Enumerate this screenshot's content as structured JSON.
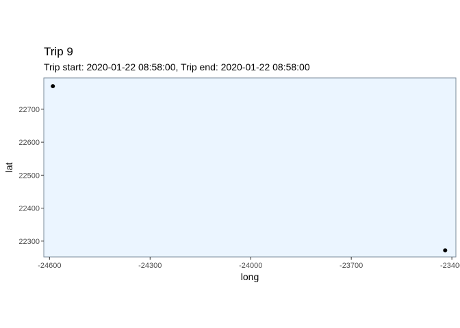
{
  "chart_data": {
    "type": "scatter",
    "title": "Trip 9",
    "subtitle": "Trip start: 2020-01-22 08:58:00, Trip end: 2020-01-22 08:58:00",
    "xlabel": "long",
    "ylabel": "lat",
    "xlim": [
      -24617,
      -23388
    ],
    "ylim": [
      22252,
      22795
    ],
    "xticks": [
      -24600,
      -24300,
      -24000,
      -23700,
      -23400
    ],
    "yticks": [
      22300,
      22400,
      22500,
      22600,
      22700
    ],
    "xtick_labels": [
      "-24600",
      "-24300",
      "-24000",
      "-23700",
      "-23400"
    ],
    "ytick_labels": [
      "22300",
      "22400",
      "22500",
      "22600",
      "22700"
    ],
    "grid": false,
    "panel_color": "#EBF5FF",
    "panel_border_color": "#7A8A99",
    "point_color": "#000000",
    "points": [
      {
        "x": -24590,
        "y": 22770
      },
      {
        "x": -23420,
        "y": 22272
      }
    ]
  }
}
